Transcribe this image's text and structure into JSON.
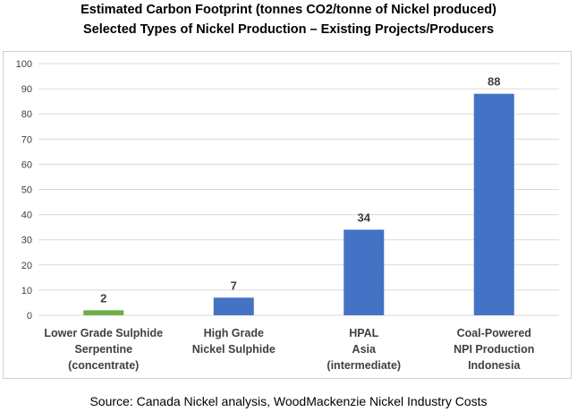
{
  "chart_data": {
    "type": "bar",
    "title": "Estimated Carbon Footprint (tonnes CO2/tonne of Nickel produced)",
    "subtitle": "Selected Types of Nickel Production – Existing Projects/Producers",
    "xlabel": "",
    "ylabel": "",
    "ylim": [
      0,
      100
    ],
    "yticks": [
      0,
      10,
      20,
      30,
      40,
      50,
      60,
      70,
      80,
      90,
      100
    ],
    "grid": true,
    "categories": [
      [
        "Lower Grade Sulphide",
        "Serpentine",
        "(concentrate)"
      ],
      [
        "High Grade",
        "Nickel Sulphide"
      ],
      [
        "HPAL",
        "Asia",
        "(intermediate)"
      ],
      [
        "Coal-Powered",
        "NPI Production",
        "Indonesia"
      ]
    ],
    "values": [
      2,
      7,
      34,
      88
    ],
    "data_labels": [
      "2",
      "7",
      "34",
      "88"
    ],
    "colors": [
      "#70ad47",
      "#4472c4",
      "#4472c4",
      "#4472c4"
    ],
    "gridline_color": "#d9d9d9",
    "label_color": "#404040"
  },
  "source": "Source: Canada Nickel analysis, WoodMackenzie Nickel Industry Costs"
}
